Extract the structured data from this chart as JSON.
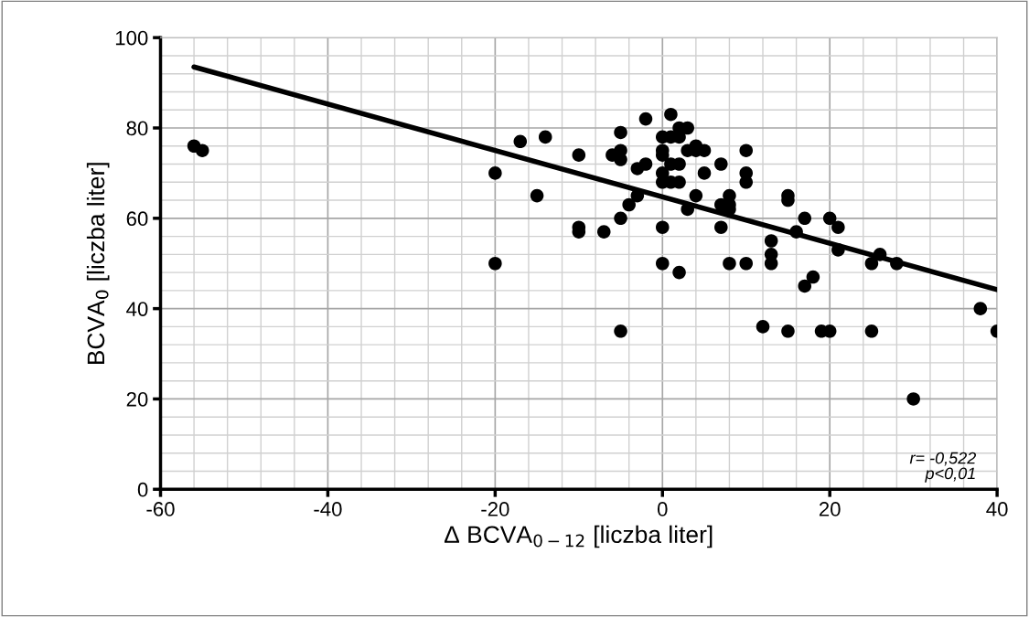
{
  "chart_data": {
    "type": "scatter",
    "xlabel": "Δ BCVA$_{0−12}$ [liczba liter]",
    "ylabel": "BCVA$_{0}$ [liczba liter]",
    "xlim": [
      -60,
      40
    ],
    "xticks": [
      -60,
      -40,
      -20,
      0,
      20,
      40
    ],
    "ylim": [
      0,
      100
    ],
    "yticks": [
      0,
      20,
      40,
      60,
      80,
      100
    ],
    "grid": true,
    "marker": "circle",
    "series": [
      {
        "color": "#000000",
        "x": [
          -56,
          -55,
          -20,
          -20,
          -17,
          -15,
          -14,
          -10,
          -10,
          -10,
          -7,
          -6,
          -5,
          -5,
          -5,
          -5,
          -5,
          -4,
          -3,
          -3,
          -2,
          -2,
          0,
          0,
          0,
          0,
          0,
          0,
          0,
          1,
          1,
          1,
          1,
          2,
          2,
          2,
          2,
          2,
          3,
          3,
          3,
          4,
          4,
          4,
          5,
          5,
          7,
          7,
          7,
          8,
          8,
          8,
          8,
          10,
          10,
          10,
          10,
          12,
          13,
          13,
          13,
          15,
          15,
          15,
          16,
          17,
          17,
          18,
          19,
          20,
          20,
          21,
          21,
          25,
          25,
          26,
          28,
          30,
          38,
          40
        ],
        "values": [
          76,
          75,
          70,
          50,
          77,
          65,
          78,
          74,
          58,
          57,
          57,
          74,
          79,
          75,
          73,
          60,
          35,
          63,
          65,
          71,
          72,
          82,
          78,
          75,
          74,
          70,
          68,
          58,
          50,
          83,
          78,
          72,
          68,
          80,
          78,
          72,
          68,
          48,
          80,
          75,
          62,
          76,
          75,
          65,
          75,
          70,
          72,
          63,
          58,
          65,
          63,
          62,
          50,
          75,
          70,
          68,
          50,
          36,
          55,
          52,
          50,
          65,
          64,
          35,
          57,
          60,
          45,
          47,
          35,
          60,
          35,
          58,
          53,
          50,
          35,
          52,
          50,
          20,
          40,
          35
        ]
      },
      {
        "type": "line",
        "color": "#000000",
        "marker": "none",
        "x": [
          -56,
          40
        ],
        "values": [
          93.5,
          44.2
        ]
      }
    ],
    "annotations": [
      {
        "text": "r= -0,522\np<0,01"
      }
    ]
  }
}
